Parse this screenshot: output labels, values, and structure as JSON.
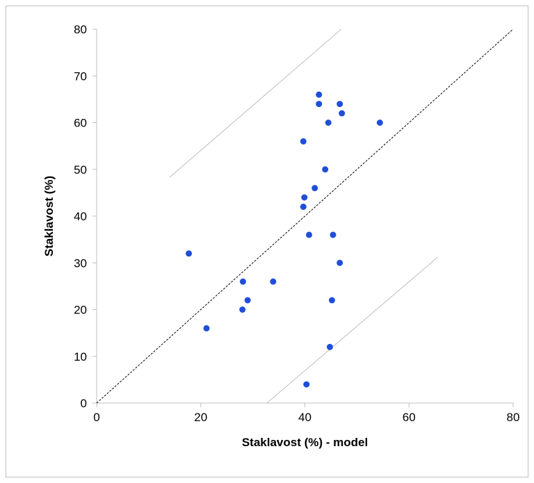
{
  "chart_data": {
    "type": "scatter",
    "title": "",
    "xlabel": "Staklavost (%) - model",
    "ylabel": "Staklavost (%)",
    "xlim": [
      0,
      80
    ],
    "ylim": [
      0,
      80
    ],
    "x_ticks": [
      "0",
      "20",
      "40",
      "60",
      "80"
    ],
    "y_ticks": [
      "0",
      "10",
      "20",
      "30",
      "40",
      "50",
      "60",
      "70",
      "80"
    ],
    "grid": false,
    "legend": "none",
    "marker_color": "#1f4fd8",
    "reference_lines": [
      {
        "kind": "identity",
        "style": "dashed",
        "color": "#000000",
        "from": [
          0,
          0
        ],
        "to": [
          80,
          80
        ]
      },
      {
        "kind": "upper-bound",
        "style": "solid",
        "color": "#bfbfbf",
        "from": [
          14,
          48.3
        ],
        "to": [
          47,
          80
        ]
      },
      {
        "kind": "lower-bound",
        "style": "solid",
        "color": "#bfbfbf",
        "from": [
          32.7,
          0
        ],
        "to": [
          65.5,
          31.2
        ]
      }
    ],
    "points": [
      {
        "x": 17.7,
        "y": 32
      },
      {
        "x": 21.1,
        "y": 16
      },
      {
        "x": 28.1,
        "y": 26
      },
      {
        "x": 28.0,
        "y": 20
      },
      {
        "x": 29.0,
        "y": 22
      },
      {
        "x": 33.9,
        "y": 26
      },
      {
        "x": 39.7,
        "y": 56
      },
      {
        "x": 39.9,
        "y": 44
      },
      {
        "x": 39.7,
        "y": 42
      },
      {
        "x": 40.3,
        "y": 4
      },
      {
        "x": 40.8,
        "y": 36
      },
      {
        "x": 41.9,
        "y": 46
      },
      {
        "x": 42.7,
        "y": 66
      },
      {
        "x": 42.7,
        "y": 64
      },
      {
        "x": 43.9,
        "y": 50
      },
      {
        "x": 44.5,
        "y": 60
      },
      {
        "x": 44.8,
        "y": 12
      },
      {
        "x": 45.2,
        "y": 22
      },
      {
        "x": 45.4,
        "y": 36
      },
      {
        "x": 46.7,
        "y": 64
      },
      {
        "x": 46.7,
        "y": 30
      },
      {
        "x": 47.1,
        "y": 62
      },
      {
        "x": 54.4,
        "y": 60
      }
    ]
  }
}
